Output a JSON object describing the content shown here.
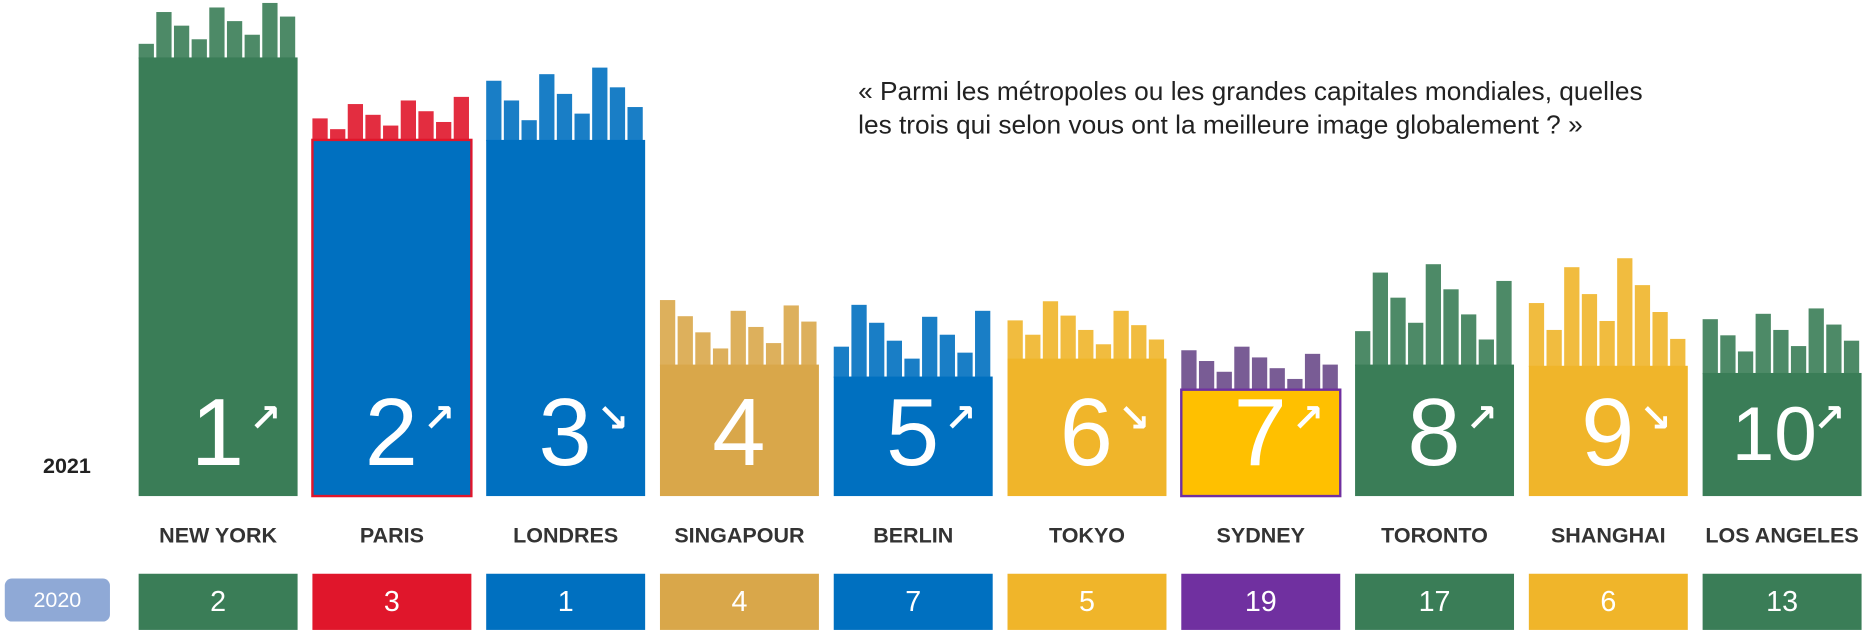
{
  "question": [
    "« Parmi les métropoles ou les grandes capitales mondiales, quelles",
    "les trois qui selon vous ont la meilleure image globalement ? »"
  ],
  "year_current": "2021",
  "year_previous": "2020",
  "cities": [
    {
      "name": "NEW YORK",
      "rank_2021": 1,
      "trend": "↗",
      "rank_2020": 2,
      "color": "#3a7d57",
      "color_2020": "#3a7d57"
    },
    {
      "name": "PARIS",
      "rank_2021": 2,
      "trend": "↗",
      "rank_2020": 3,
      "color": "#0070c0",
      "color_2020": "#e0162b"
    },
    {
      "name": "LONDRES",
      "rank_2021": 3,
      "trend": "↘",
      "rank_2020": 1,
      "color": "#0070c0",
      "color_2020": "#0070c0"
    },
    {
      "name": "SINGAPOUR",
      "rank_2021": 4,
      "trend": "",
      "rank_2020": 4,
      "color": "#d9a74a",
      "color_2020": "#d9a74a"
    },
    {
      "name": "BERLIN",
      "rank_2021": 5,
      "trend": "↗",
      "rank_2020": 7,
      "color": "#0070c0",
      "color_2020": "#0070c0"
    },
    {
      "name": "TOKYO",
      "rank_2021": 6,
      "trend": "↘",
      "rank_2020": 5,
      "color": "#f0b52a",
      "color_2020": "#f0b52a"
    },
    {
      "name": "SYDNEY",
      "rank_2021": 7,
      "trend": "↗",
      "rank_2020": 19,
      "color": "#ffc000",
      "color_2020": "#7030a0"
    },
    {
      "name": "TORONTO",
      "rank_2021": 8,
      "trend": "↗",
      "rank_2020": 17,
      "color": "#3a7d57",
      "color_2020": "#3a7d57"
    },
    {
      "name": "SHANGHAI",
      "rank_2021": 9,
      "trend": "↘",
      "rank_2020": 6,
      "color": "#f0b52a",
      "color_2020": "#f0b52a"
    },
    {
      "name": "LOS ANGELES",
      "rank_2021": 10,
      "trend": "↗",
      "rank_2020": 13,
      "color": "#3a7d57",
      "color_2020": "#3a7d57"
    }
  ]
}
